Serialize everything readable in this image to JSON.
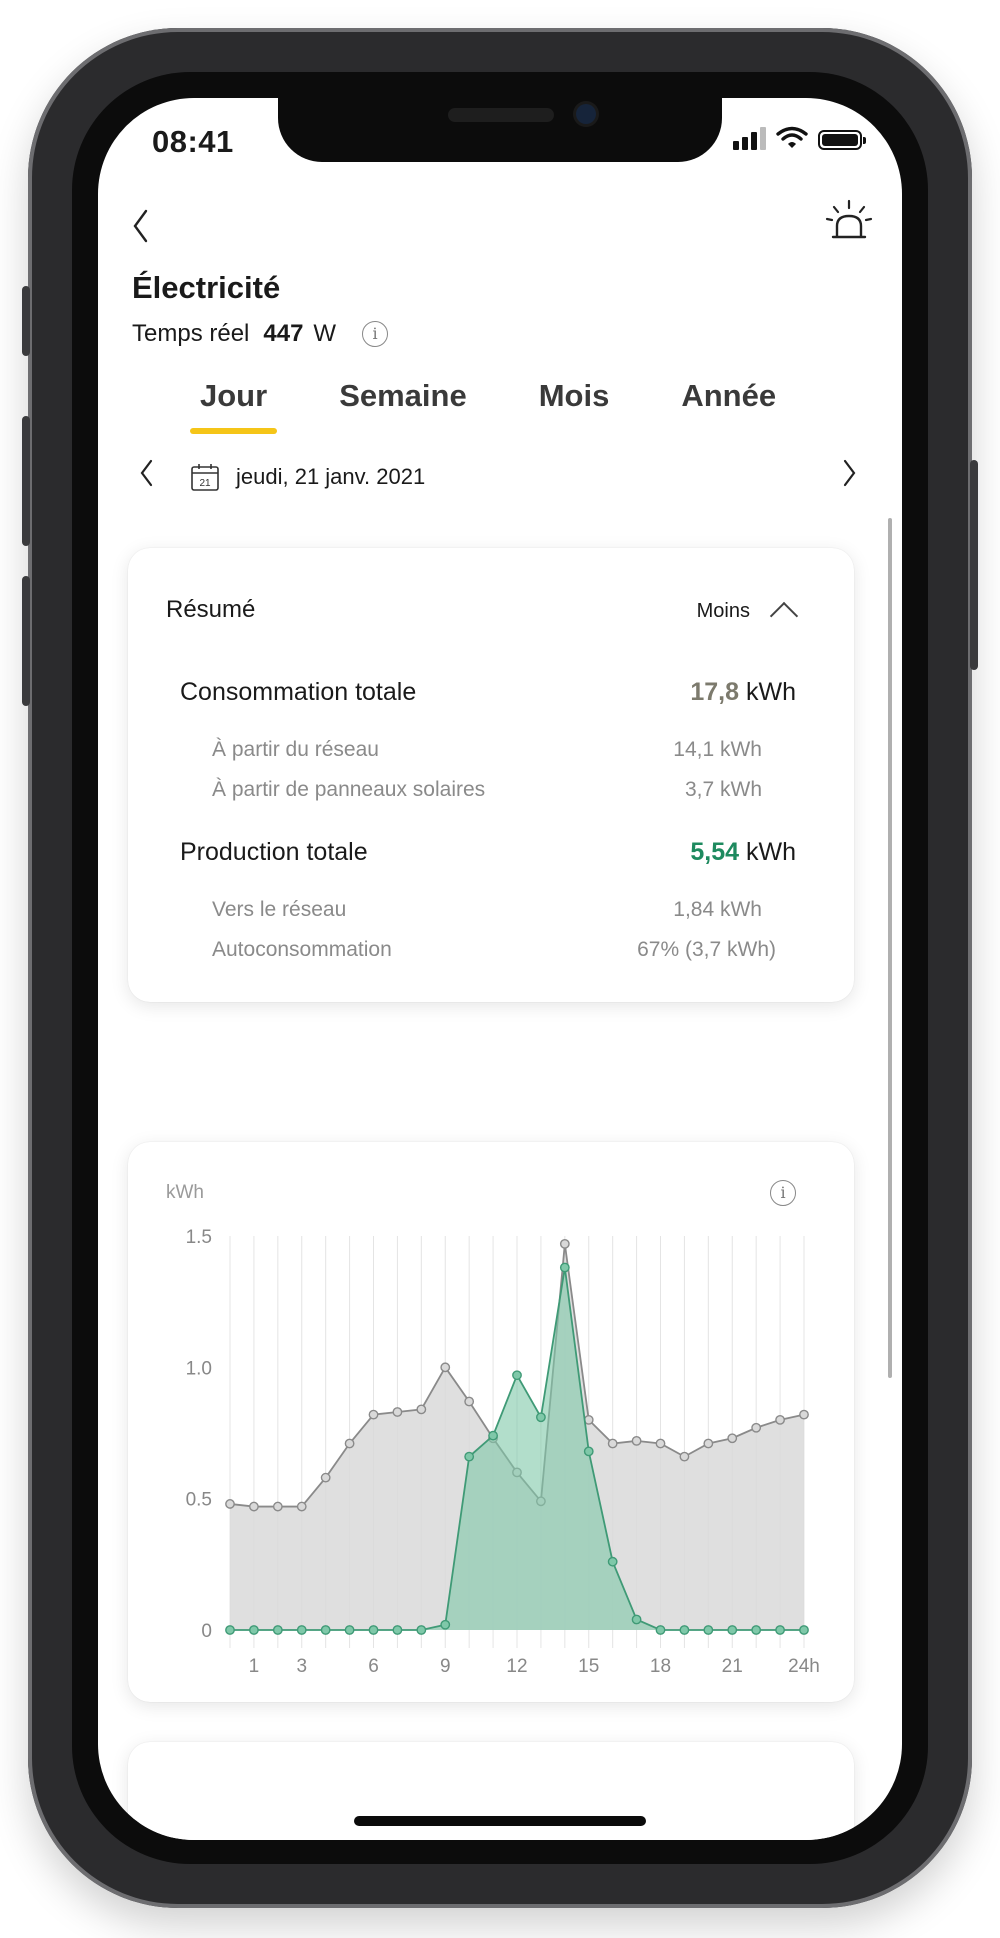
{
  "status_bar": {
    "time": "08:41"
  },
  "header": {
    "title": "Électricité"
  },
  "realtime": {
    "label": "Temps réel",
    "value": "447",
    "unit": "W"
  },
  "tabs": [
    {
      "label": "Jour",
      "active": true
    },
    {
      "label": "Semaine",
      "active": false
    },
    {
      "label": "Mois",
      "active": false
    },
    {
      "label": "Année",
      "active": false
    }
  ],
  "date": {
    "text": "jeudi, 21 janv. 2021",
    "calendar_day": "21"
  },
  "summary": {
    "title": "Résumé",
    "toggle_label": "Moins",
    "consumption": {
      "label": "Consommation totale",
      "value": "17,8",
      "unit": "kWh"
    },
    "from_grid": {
      "label": "À partir du réseau",
      "value": "14,1 kWh"
    },
    "from_solar": {
      "label": "À partir de panneaux solaires",
      "value": "3,7 kWh"
    },
    "production": {
      "label": "Production totale",
      "value": "5,54",
      "unit": "kWh"
    },
    "to_grid": {
      "label": "Vers le réseau",
      "value": "1,84 kWh"
    },
    "self_consumption": {
      "label": "Autoconsommation",
      "value": "67% (3,7 kWh)"
    }
  },
  "colors": {
    "accent": "#f5c518",
    "consumption_fill": "#d9d9d9",
    "consumption_line": "#8a8a8a",
    "production_fill": "#7fc8a9",
    "production_line": "#3f9a76",
    "production_value": "#1e8a5f"
  },
  "chart_data": {
    "type": "area",
    "ylabel": "kWh",
    "ylim": [
      0,
      1.5
    ],
    "y_ticks": [
      "0",
      "0.5",
      "1.0",
      "1.5"
    ],
    "x_tick_labels": [
      "1",
      "3",
      "6",
      "9",
      "12",
      "15",
      "18",
      "21",
      "24h"
    ],
    "x_tick_positions": [
      1,
      3,
      6,
      9,
      12,
      15,
      18,
      21,
      24
    ],
    "x": [
      0,
      1,
      2,
      3,
      4,
      5,
      6,
      7,
      8,
      9,
      10,
      11,
      12,
      13,
      14,
      15,
      16,
      17,
      18,
      19,
      20,
      21,
      22,
      23,
      24
    ],
    "grid": true,
    "series": [
      {
        "name": "",
        "values": [
          0.48,
          0.47,
          0.47,
          0.47,
          0.58,
          0.71,
          0.82,
          0.83,
          0.84,
          1.0,
          0.87,
          0.73,
          0.6,
          0.49,
          1.47,
          0.8,
          0.71,
          0.72,
          0.71,
          0.66,
          0.71,
          0.73,
          0.77,
          0.8,
          0.82
        ]
      },
      {
        "name": "",
        "values": [
          0,
          0,
          0,
          0,
          0,
          0,
          0,
          0,
          0,
          0.02,
          0.66,
          0.74,
          0.97,
          0.81,
          1.38,
          0.68,
          0.26,
          0.04,
          0,
          0,
          0,
          0,
          0,
          0,
          0
        ]
      }
    ]
  }
}
